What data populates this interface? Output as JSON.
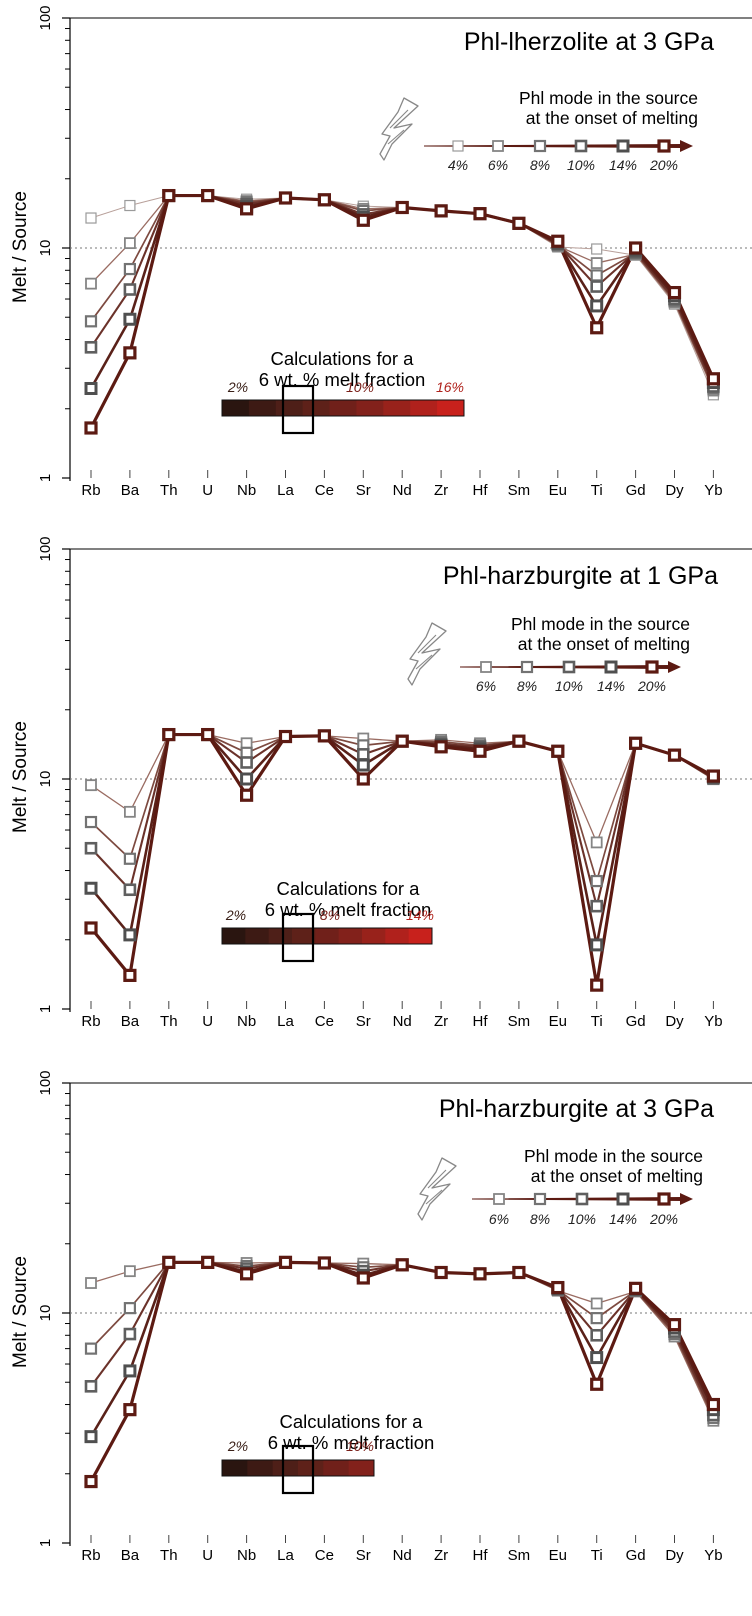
{
  "chart_data": [
    {
      "type": "line",
      "title": "Phl-lherzolite at 3 GPa",
      "ylabel": "Melt / Source",
      "yscale": "log",
      "ylim": [
        1,
        100
      ],
      "yticks": [
        "1",
        "10",
        "100"
      ],
      "grid": "dotted line at 10",
      "categories": [
        "Rb",
        "Ba",
        "Th",
        "U",
        "Nb",
        "La",
        "Ce",
        "Sr",
        "Nd",
        "Zr",
        "Hf",
        "Sm",
        "Eu",
        "Ti",
        "Gd",
        "Dy",
        "Yb"
      ],
      "legend": {
        "title_line1": "Phl mode in the source",
        "title_line2": "at the onset of melting",
        "labels": [
          "4%",
          "6%",
          "8%",
          "10%",
          "14%",
          "20%"
        ]
      },
      "calc": {
        "line1": "Calculations for a",
        "line2": "6 wt. % melt fraction",
        "labels": [
          "2%",
          "10%",
          "16%"
        ],
        "colors": [
          "#2a1510",
          "#3d1a14",
          "#4e1f18",
          "#5e2119",
          "#70201a",
          "#82211b",
          "#98221b",
          "#b0211c",
          "#c8211c"
        ]
      },
      "series": [
        {
          "name": "4%",
          "values": [
            13.5,
            15.3,
            16.9,
            16.9,
            16.3,
            16.5,
            16.2,
            15.2,
            15.0,
            14.5,
            14.1,
            12.8,
            10.1,
            9.9,
            9.3,
            5.7,
            2.3
          ]
        },
        {
          "name": "6%",
          "values": [
            7.0,
            10.5,
            16.9,
            16.9,
            16.0,
            16.5,
            16.2,
            14.8,
            15.0,
            14.5,
            14.1,
            12.8,
            10.2,
            8.6,
            9.4,
            5.8,
            2.4
          ]
        },
        {
          "name": "8%",
          "values": [
            4.8,
            8.1,
            16.9,
            16.9,
            15.8,
            16.5,
            16.2,
            14.5,
            15.0,
            14.5,
            14.1,
            12.8,
            10.3,
            7.6,
            9.5,
            5.9,
            2.45
          ]
        },
        {
          "name": "10%",
          "values": [
            3.7,
            6.6,
            16.9,
            16.9,
            15.5,
            16.5,
            16.2,
            14.0,
            15.0,
            14.5,
            14.1,
            12.8,
            10.4,
            6.8,
            9.6,
            6.0,
            2.5
          ]
        },
        {
          "name": "14%",
          "values": [
            2.45,
            4.9,
            16.9,
            16.9,
            15.1,
            16.5,
            16.2,
            13.6,
            15.0,
            14.5,
            14.1,
            12.8,
            10.5,
            5.6,
            9.8,
            6.2,
            2.6
          ]
        },
        {
          "name": "20%",
          "values": [
            1.65,
            3.5,
            16.9,
            16.9,
            14.8,
            16.5,
            16.2,
            13.2,
            15.0,
            14.5,
            14.1,
            12.8,
            10.7,
            4.5,
            10.0,
            6.4,
            2.7
          ]
        }
      ]
    },
    {
      "type": "line",
      "title": "Phl-harzburgite at 1 GPa",
      "ylabel": "Melt / Source",
      "yscale": "log",
      "ylim": [
        1,
        100
      ],
      "yticks": [
        "1",
        "10",
        "100"
      ],
      "grid": "dotted line at 10",
      "categories": [
        "Rb",
        "Ba",
        "Th",
        "U",
        "Nb",
        "La",
        "Ce",
        "Sr",
        "Nd",
        "Zr",
        "Hf",
        "Sm",
        "Eu",
        "Ti",
        "Gd",
        "Dy",
        "Yb"
      ],
      "legend": {
        "title_line1": "Phl mode in the source",
        "title_line2": "at the onset of melting",
        "labels": [
          "6%",
          "8%",
          "10%",
          "14%",
          "20%"
        ]
      },
      "calc": {
        "line1": "Calculations for a",
        "line2": "6 wt. % melt fraction",
        "labels": [
          "2%",
          "8%",
          "14%"
        ],
        "colors": [
          "#2a1510",
          "#3d1a14",
          "#4e1f18",
          "#5e2119",
          "#70201a",
          "#82211b",
          "#98221b",
          "#b0211c",
          "#c8211c"
        ]
      },
      "series": [
        {
          "name": "6%",
          "values": [
            9.4,
            7.2,
            15.6,
            15.6,
            14.3,
            15.3,
            15.4,
            15.0,
            14.6,
            14.8,
            14.3,
            14.6,
            13.2,
            5.3,
            14.3,
            12.7,
            10.0
          ]
        },
        {
          "name": "8%",
          "values": [
            6.5,
            4.5,
            15.6,
            15.6,
            13.0,
            15.3,
            15.4,
            14.0,
            14.6,
            14.5,
            14.0,
            14.6,
            13.2,
            3.6,
            14.3,
            12.7,
            10.0
          ]
        },
        {
          "name": "10%",
          "values": [
            5.0,
            3.3,
            15.6,
            15.6,
            11.8,
            15.3,
            15.4,
            12.8,
            14.6,
            14.2,
            13.8,
            14.6,
            13.2,
            2.8,
            14.3,
            12.7,
            10.1
          ]
        },
        {
          "name": "14%",
          "values": [
            3.35,
            2.1,
            15.6,
            15.6,
            10.0,
            15.3,
            15.4,
            11.5,
            14.6,
            14.0,
            13.5,
            14.6,
            13.2,
            1.9,
            14.3,
            12.7,
            10.2
          ]
        },
        {
          "name": "20%",
          "values": [
            2.25,
            1.4,
            15.6,
            15.6,
            8.5,
            15.3,
            15.4,
            10.0,
            14.6,
            13.8,
            13.2,
            14.6,
            13.2,
            1.27,
            14.3,
            12.7,
            10.3
          ]
        }
      ]
    },
    {
      "type": "line",
      "title": "Phl-harzburgite at 3 GPa",
      "ylabel": "Melt / Source",
      "yscale": "log",
      "ylim": [
        1,
        100
      ],
      "yticks": [
        "1",
        "10",
        "100"
      ],
      "grid": "dotted line at 10",
      "categories": [
        "Rb",
        "Ba",
        "Th",
        "U",
        "Nb",
        "La",
        "Ce",
        "Sr",
        "Nd",
        "Zr",
        "Hf",
        "Sm",
        "Eu",
        "Ti",
        "Gd",
        "Dy",
        "Yb"
      ],
      "legend": {
        "title_line1": "Phl mode in the source",
        "title_line2": "at the onset of melting",
        "labels": [
          "6%",
          "8%",
          "10%",
          "14%",
          "20%"
        ]
      },
      "calc": {
        "line1": "Calculations for a",
        "line2": "6 wt. % melt fraction",
        "labels": [
          "2%",
          "10%"
        ],
        "colors": [
          "#2a1510",
          "#3d1a14",
          "#4e1f18",
          "#5e2119",
          "#70201a",
          "#82211b"
        ]
      },
      "series": [
        {
          "name": "6%",
          "values": [
            13.5,
            15.2,
            16.6,
            16.6,
            16.5,
            16.6,
            16.5,
            16.4,
            16.2,
            15.0,
            14.8,
            15.0,
            12.5,
            11.0,
            12.4,
            7.9,
            3.4
          ]
        },
        {
          "name": "8%",
          "values": [
            7.0,
            10.5,
            16.6,
            16.6,
            16.0,
            16.6,
            16.5,
            15.8,
            16.2,
            15.0,
            14.8,
            15.0,
            12.6,
            9.5,
            12.5,
            8.1,
            3.5
          ]
        },
        {
          "name": "10%",
          "values": [
            4.8,
            8.1,
            16.6,
            16.6,
            15.6,
            16.6,
            16.5,
            15.2,
            16.2,
            15.0,
            14.8,
            15.0,
            12.7,
            8.0,
            12.6,
            8.3,
            3.6
          ]
        },
        {
          "name": "14%",
          "values": [
            2.9,
            5.6,
            16.6,
            16.6,
            15.1,
            16.6,
            16.5,
            14.6,
            16.2,
            15.0,
            14.8,
            15.0,
            12.8,
            6.4,
            12.7,
            8.6,
            3.8
          ]
        },
        {
          "name": "20%",
          "values": [
            1.85,
            3.8,
            16.6,
            16.6,
            14.8,
            16.6,
            16.5,
            14.2,
            16.2,
            15.0,
            14.8,
            15.0,
            12.9,
            4.9,
            12.8,
            8.9,
            4.0
          ]
        }
      ]
    }
  ]
}
